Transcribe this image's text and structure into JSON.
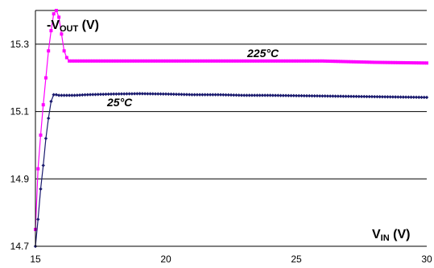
{
  "chart_data": {
    "type": "line",
    "ylabel": {
      "main": "-V",
      "sub": "OUT",
      "unit": " (V)"
    },
    "xlabel": {
      "main": "V",
      "sub": "IN",
      "unit": " (V)"
    },
    "xlim": [
      15,
      30
    ],
    "ylim": [
      14.7,
      15.4
    ],
    "xticks": [
      "15",
      "20",
      "25",
      "30"
    ],
    "yticks": [
      "14.7",
      "14.9",
      "15.1",
      "15.3"
    ],
    "grid": "horizontal",
    "series": [
      {
        "name": "225°C",
        "color": "#ff00ff",
        "marker": "square",
        "x": [
          15.0,
          15.1,
          15.2,
          15.3,
          15.4,
          15.5,
          15.6,
          15.7,
          15.8,
          15.9,
          16.0,
          16.1,
          16.2,
          16.3,
          16.4,
          16.5,
          17,
          18,
          19,
          20,
          21,
          22,
          23,
          24,
          25,
          26,
          27,
          28,
          29,
          30
        ],
        "y": [
          14.75,
          14.93,
          15.03,
          15.12,
          15.2,
          15.28,
          15.34,
          15.39,
          15.4,
          15.38,
          15.33,
          15.28,
          15.26,
          15.25,
          15.25,
          15.25,
          15.25,
          15.25,
          15.25,
          15.25,
          15.25,
          15.25,
          15.25,
          15.25,
          15.25,
          15.25,
          15.248,
          15.246,
          15.245,
          15.244
        ]
      },
      {
        "name": "25°C",
        "color": "#1a1a6e",
        "marker": "diamond",
        "x": [
          15.0,
          15.1,
          15.2,
          15.3,
          15.4,
          15.5,
          15.6,
          15.7,
          15.8,
          15.9,
          16.0,
          16.5,
          17,
          18,
          19,
          20,
          21,
          22,
          23,
          24,
          25,
          26,
          27,
          28,
          29,
          30
        ],
        "y": [
          14.7,
          14.78,
          14.87,
          14.94,
          15.02,
          15.08,
          15.13,
          15.15,
          15.15,
          15.148,
          15.148,
          15.148,
          15.15,
          15.152,
          15.153,
          15.152,
          15.15,
          15.15,
          15.148,
          15.148,
          15.147,
          15.146,
          15.145,
          15.144,
          15.143,
          15.142
        ]
      }
    ],
    "annotations": [
      "225°C",
      "25°C"
    ]
  }
}
